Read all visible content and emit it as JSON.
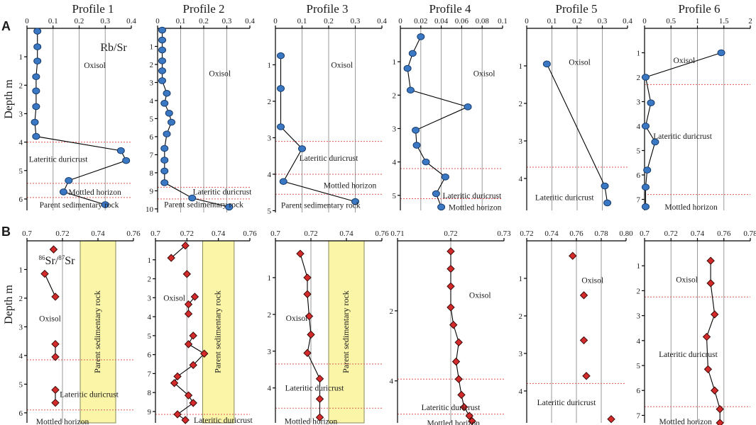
{
  "panel_labels": [
    "A",
    "B"
  ],
  "chart_data": [
    {
      "type": "line",
      "name": "A-Profile 1",
      "title": "Profile 1",
      "ylabel": "Depth m",
      "variable_label": "Rb/Sr",
      "xticks": [
        "0",
        "0.1",
        "0.2",
        "0.3",
        "0.4"
      ],
      "xlim": [
        0,
        0.4
      ],
      "yticks": [
        "1",
        "2",
        "3",
        "4",
        "5",
        "6"
      ],
      "ylim": [
        0,
        6.4
      ],
      "points": [
        {
          "x": 0.04,
          "y": 0.1
        },
        {
          "x": 0.04,
          "y": 0.65
        },
        {
          "x": 0.04,
          "y": 1.15
        },
        {
          "x": 0.035,
          "y": 1.7
        },
        {
          "x": 0.035,
          "y": 2.2
        },
        {
          "x": 0.035,
          "y": 2.75
        },
        {
          "x": 0.03,
          "y": 3.3
        },
        {
          "x": 0.035,
          "y": 3.8
        },
        {
          "x": 0.36,
          "y": 4.3
        },
        {
          "x": 0.38,
          "y": 4.65
        },
        {
          "x": 0.16,
          "y": 5.35
        },
        {
          "x": 0.14,
          "y": 5.75
        },
        {
          "x": 0.3,
          "y": 6.2
        }
      ],
      "boundaries": [
        4.0,
        5.45,
        5.95
      ],
      "labels": [
        {
          "text": "Oxisol",
          "x": 0.26,
          "y": 1.3
        },
        {
          "text": "Lateritic duricrust",
          "x": 0.12,
          "y": 4.6
        },
        {
          "text": "Mottled horizon",
          "x": 0.26,
          "y": 5.75
        },
        {
          "text": "Parent sedimentary rock",
          "x": 0.2,
          "y": 6.2
        }
      ]
    },
    {
      "type": "line",
      "name": "A-Profile 2",
      "title": "Profile 2",
      "ylabel": "",
      "xticks": [
        "0",
        "0.1",
        "0.2",
        "0.3",
        "0.4"
      ],
      "xlim": [
        0,
        0.4
      ],
      "yticks": [
        "1",
        "2",
        "3",
        "4",
        "5",
        "6",
        "7",
        "8",
        "9",
        "10"
      ],
      "ylim": [
        0,
        10.2
      ],
      "points": [
        {
          "x": 0.02,
          "y": 0.1
        },
        {
          "x": 0.02,
          "y": 0.65
        },
        {
          "x": 0.02,
          "y": 1.2
        },
        {
          "x": 0.02,
          "y": 1.8
        },
        {
          "x": 0.02,
          "y": 2.35
        },
        {
          "x": 0.02,
          "y": 2.9
        },
        {
          "x": 0.04,
          "y": 3.6
        },
        {
          "x": 0.03,
          "y": 4.15
        },
        {
          "x": 0.05,
          "y": 4.7
        },
        {
          "x": 0.06,
          "y": 5.2
        },
        {
          "x": 0.04,
          "y": 5.85
        },
        {
          "x": 0.03,
          "y": 6.65
        },
        {
          "x": 0.03,
          "y": 7.3
        },
        {
          "x": 0.03,
          "y": 7.9
        },
        {
          "x": 0.03,
          "y": 8.55
        },
        {
          "x": 0.15,
          "y": 9.4
        },
        {
          "x": 0.31,
          "y": 9.9
        }
      ],
      "boundaries": [
        8.8,
        9.45
      ],
      "labels": [
        {
          "text": "Oxisol",
          "x": 0.27,
          "y": 2.5
        },
        {
          "text": "Lateritic duricrust",
          "x": 0.28,
          "y": 9.05
        },
        {
          "text": "Parent sedimentary rock",
          "x": 0.2,
          "y": 9.75
        }
      ]
    },
    {
      "type": "line",
      "name": "A-Profile 3",
      "title": "Profile 3",
      "ylabel": "",
      "xticks": [
        "0",
        "0.1",
        "0.2",
        "0.3",
        "0.4"
      ],
      "xlim": [
        0,
        0.4
      ],
      "yticks": [
        "1",
        "2",
        "3",
        "4",
        "5"
      ],
      "ylim": [
        0,
        5.05
      ],
      "points": [
        {
          "x": 0.02,
          "y": 0.75
        },
        {
          "x": 0.02,
          "y": 1.65
        },
        {
          "x": 0.02,
          "y": 2.7
        },
        {
          "x": 0.1,
          "y": 3.3
        },
        {
          "x": 0.03,
          "y": 4.2
        },
        {
          "x": 0.3,
          "y": 4.75
        }
      ],
      "boundaries": [
        3.1,
        4.0,
        4.55
      ],
      "labels": [
        {
          "text": "Oxisol",
          "x": 0.25,
          "y": 1.0
        },
        {
          "text": "Lateritic duricrust",
          "x": 0.2,
          "y": 3.55
        },
        {
          "text": "Mottled horizon",
          "x": 0.28,
          "y": 4.3
        },
        {
          "text": "Parent sedimentary rock",
          "x": 0.17,
          "y": 4.85
        }
      ]
    },
    {
      "type": "line",
      "name": "A-Profile 4",
      "title": "Profile 4",
      "ylabel": "",
      "xticks": [
        "0",
        "0.02",
        "0.04",
        "0.06",
        "0.08",
        "0.1"
      ],
      "xlim": [
        0,
        0.1
      ],
      "yticks": [
        "1",
        "2",
        "3",
        "4",
        "5"
      ],
      "ylim": [
        0,
        5.45
      ],
      "points": [
        {
          "x": 0.02,
          "y": 0.25
        },
        {
          "x": 0.012,
          "y": 0.75
        },
        {
          "x": 0.007,
          "y": 1.2
        },
        {
          "x": 0.01,
          "y": 1.85
        },
        {
          "x": 0.066,
          "y": 2.35
        },
        {
          "x": 0.015,
          "y": 3.05
        },
        {
          "x": 0.016,
          "y": 3.5
        },
        {
          "x": 0.025,
          "y": 4.0
        },
        {
          "x": 0.044,
          "y": 4.45
        },
        {
          "x": 0.035,
          "y": 4.95
        },
        {
          "x": 0.04,
          "y": 5.35
        }
      ],
      "boundaries": [
        4.2,
        5.1
      ],
      "labels": [
        {
          "text": "Oxisol",
          "x": 0.082,
          "y": 1.35
        },
        {
          "text": "Lateritic duricrust",
          "x": 0.07,
          "y": 5.0
        },
        {
          "text": "Mottled horizon",
          "x": 0.073,
          "y": 5.35
        }
      ]
    },
    {
      "type": "line",
      "name": "A-Profile 5",
      "title": "Profile 5",
      "ylabel": "",
      "xticks": [
        "0",
        "0.1",
        "0.2",
        "0.3",
        "0.4"
      ],
      "xlim": [
        0,
        0.4
      ],
      "yticks": [
        "1",
        "2",
        "3",
        "4"
      ],
      "ylim": [
        0,
        4.85
      ],
      "points": [
        {
          "x": 0.08,
          "y": 0.95,
          "solo": true
        },
        {
          "x": 0.31,
          "y": 4.2
        },
        {
          "x": 0.32,
          "y": 4.65
        }
      ],
      "boundaries": [
        3.7
      ],
      "labels": [
        {
          "text": "Oxisol",
          "x": 0.21,
          "y": 0.9
        },
        {
          "text": "Lateritic duricrust",
          "x": 0.15,
          "y": 4.5
        }
      ]
    },
    {
      "type": "line",
      "name": "A-Profile 6",
      "title": "Profile 6",
      "ylabel": "",
      "xticks": [
        "0",
        "0.5",
        "1",
        "1.5",
        "2"
      ],
      "xlim": [
        0,
        2
      ],
      "yticks": [
        "1",
        "2",
        "3",
        "4",
        "5",
        "6",
        "7"
      ],
      "ylim": [
        0,
        7.45
      ],
      "points": [
        {
          "x": 1.45,
          "y": 1.0
        },
        {
          "x": 0.02,
          "y": 2.0
        },
        {
          "x": 0.12,
          "y": 3.05
        },
        {
          "x": 0.02,
          "y": 4.0
        },
        {
          "x": 0.2,
          "y": 4.65
        },
        {
          "x": 0.05,
          "y": 5.8
        },
        {
          "x": 0.02,
          "y": 6.5
        },
        {
          "x": 0.02,
          "y": 7.3
        }
      ],
      "boundaries": [
        2.3,
        6.8
      ],
      "labels": [
        {
          "text": "Oxisol",
          "x": 0.75,
          "y": 1.3
        },
        {
          "text": "Lateritic duricrust",
          "x": 0.72,
          "y": 4.4
        },
        {
          "text": "Mottled horizon",
          "x": 0.88,
          "y": 7.3
        }
      ]
    },
    {
      "type": "line",
      "name": "B-Profile 1",
      "title": "",
      "ylabel": "Depth m",
      "variable_label": "86Sr/87Sr",
      "xticks": [
        "0.7",
        "0.72",
        "0.74",
        "0.76"
      ],
      "xlim": [
        0.7,
        0.76
      ],
      "yticks": [
        "1",
        "2",
        "3",
        "4",
        "5",
        "6"
      ],
      "ylim": [
        0,
        6.35
      ],
      "points": [
        {
          "x": 0.715,
          "y": 0.3
        },
        {
          "x": 0.71,
          "y": 1.15,
          "break_before": true
        },
        {
          "x": 0.716,
          "y": 1.95
        },
        {
          "x": 0.716,
          "y": 3.6,
          "break_before": true
        },
        {
          "x": 0.716,
          "y": 4.05
        },
        {
          "x": 0.716,
          "y": 5.2,
          "break_before": true
        },
        {
          "x": 0.716,
          "y": 5.65
        }
      ],
      "band": [
        0.73,
        0.75
      ],
      "band_label": "Parent sedimentary rock",
      "boundaries": [
        4.15,
        5.9
      ],
      "labels": [
        {
          "text": "Oxisol",
          "x": 0.713,
          "y": 2.7
        },
        {
          "text": "Lateritic duricrust",
          "x": 0.735,
          "y": 5.35
        },
        {
          "text": "Mottled horizon",
          "x": 0.72,
          "y": 6.3
        }
      ]
    },
    {
      "type": "line",
      "name": "B-Profile 2",
      "title": "",
      "ylabel": "",
      "xticks": [
        "0.7",
        "0.72",
        "0.74",
        "0.76"
      ],
      "xlim": [
        0.7,
        0.76
      ],
      "yticks": [
        "1",
        "2",
        "3",
        "4",
        "5",
        "6",
        "7",
        "8",
        "9"
      ],
      "ylim": [
        0,
        9.6
      ],
      "points": [
        {
          "x": 0.719,
          "y": 0.25
        },
        {
          "x": 0.71,
          "y": 0.9
        },
        {
          "x": 0.72,
          "y": 1.75,
          "break_before": true
        },
        {
          "x": 0.725,
          "y": 2.95,
          "break_before": true
        },
        {
          "x": 0.721,
          "y": 3.35
        },
        {
          "x": 0.721,
          "y": 3.85
        },
        {
          "x": 0.724,
          "y": 5.0,
          "break_before": true
        },
        {
          "x": 0.721,
          "y": 5.45
        },
        {
          "x": 0.731,
          "y": 5.95
        },
        {
          "x": 0.724,
          "y": 6.55
        },
        {
          "x": 0.714,
          "y": 7.15
        },
        {
          "x": 0.712,
          "y": 7.5
        },
        {
          "x": 0.721,
          "y": 8.15
        },
        {
          "x": 0.724,
          "y": 8.55
        },
        {
          "x": 0.714,
          "y": 9.15
        },
        {
          "x": 0.719,
          "y": 9.45
        }
      ],
      "band": [
        0.73,
        0.75
      ],
      "band_label": "Parent sedimentary rock",
      "boundaries": [
        9.15
      ],
      "labels": [
        {
          "text": "Oxisol",
          "x": 0.712,
          "y": 3.0
        },
        {
          "text": "Lateritic duricrust",
          "x": 0.743,
          "y": 9.45
        }
      ]
    },
    {
      "type": "line",
      "name": "B-Profile 3",
      "title": "",
      "ylabel": "",
      "xticks": [
        "0.7",
        "0.72",
        "0.74",
        "0.76"
      ],
      "xlim": [
        0.7,
        0.76
      ],
      "yticks": [
        "1",
        "2",
        "3",
        "4"
      ],
      "ylim": [
        0,
        4.95
      ],
      "points": [
        {
          "x": 0.714,
          "y": 0.35
        },
        {
          "x": 0.718,
          "y": 1.0
        },
        {
          "x": 0.718,
          "y": 1.45
        },
        {
          "x": 0.719,
          "y": 2.05
        },
        {
          "x": 0.72,
          "y": 2.55
        },
        {
          "x": 0.718,
          "y": 3.05
        },
        {
          "x": 0.725,
          "y": 3.75
        },
        {
          "x": 0.725,
          "y": 4.3
        },
        {
          "x": 0.725,
          "y": 4.8
        }
      ],
      "band": [
        0.73,
        0.75
      ],
      "band_label": "Parent sedimentary rock",
      "boundaries": [
        3.35,
        4.55
      ],
      "labels": [
        {
          "text": "Oxisol",
          "x": 0.712,
          "y": 2.1
        },
        {
          "text": "Lateritic duricrust",
          "x": 0.722,
          "y": 4.0
        },
        {
          "text": "Mottled horizon",
          "x": 0.72,
          "y": 4.9
        }
      ]
    },
    {
      "type": "line",
      "name": "B-Profile 4",
      "title": "",
      "ylabel": "",
      "xticks": [
        "0.71",
        "0.72",
        "0.73"
      ],
      "xlim": [
        0.71,
        0.73
      ],
      "yticks": [
        "2",
        "4"
      ],
      "ylim": [
        0,
        5.2
      ],
      "points": [
        {
          "x": 0.72,
          "y": 0.3
        },
        {
          "x": 0.72,
          "y": 0.8
        },
        {
          "x": 0.72,
          "y": 1.3
        },
        {
          "x": 0.72,
          "y": 1.9
        },
        {
          "x": 0.7205,
          "y": 2.4
        },
        {
          "x": 0.7215,
          "y": 2.9
        },
        {
          "x": 0.721,
          "y": 3.45
        },
        {
          "x": 0.7215,
          "y": 3.95
        },
        {
          "x": 0.722,
          "y": 4.4
        },
        {
          "x": 0.7225,
          "y": 4.75
        },
        {
          "x": 0.7235,
          "y": 5.0
        },
        {
          "x": 0.724,
          "y": 5.15
        }
      ],
      "boundaries": [
        3.95,
        4.95
      ],
      "labels": [
        {
          "text": "Oxisol",
          "x": 0.7255,
          "y": 1.55
        },
        {
          "text": "Lateritic duricrust",
          "x": 0.72,
          "y": 4.75
        },
        {
          "text": "Mottled horizon",
          "x": 0.7205,
          "y": 5.2
        }
      ]
    },
    {
      "type": "line",
      "name": "B-Profile 5",
      "title": "",
      "ylabel": "",
      "xticks": [
        "0.72",
        "0.74",
        "0.76",
        "0.78",
        "0.80"
      ],
      "xlim": [
        0.72,
        0.8
      ],
      "yticks": [
        "1",
        "2",
        "3",
        "4"
      ],
      "ylim": [
        0,
        4.85
      ],
      "points": [
        {
          "x": 0.757,
          "y": 0.4
        },
        {
          "x": 0.766,
          "y": 1.45,
          "break_before": true
        },
        {
          "x": 0.766,
          "y": 2.65,
          "break_before": true
        },
        {
          "x": 0.768,
          "y": 3.6,
          "break_before": true
        },
        {
          "x": 0.788,
          "y": 4.75,
          "break_before": true
        }
      ],
      "boundaries": [
        3.8
      ],
      "labels": [
        {
          "text": "Oxisol",
          "x": 0.773,
          "y": 1.05
        },
        {
          "text": "Lateritic duricrust",
          "x": 0.752,
          "y": 4.3
        }
      ]
    },
    {
      "type": "line",
      "name": "B-Profile 6",
      "title": "",
      "ylabel": "",
      "xticks": [
        "0.7",
        "0.72",
        "0.74",
        "0.76",
        "0.78"
      ],
      "xlim": [
        0.7,
        0.78
      ],
      "yticks": [
        "1",
        "2",
        "3",
        "4",
        "5",
        "6",
        "7"
      ],
      "ylim": [
        0,
        7.3
      ],
      "points": [
        {
          "x": 0.75,
          "y": 0.8
        },
        {
          "x": 0.75,
          "y": 1.7
        },
        {
          "x": 0.753,
          "y": 2.95
        },
        {
          "x": 0.747,
          "y": 3.85
        },
        {
          "x": 0.748,
          "y": 5.15
        },
        {
          "x": 0.753,
          "y": 6.0
        },
        {
          "x": 0.757,
          "y": 6.75
        },
        {
          "x": 0.757,
          "y": 7.3
        }
      ],
      "boundaries": [
        2.25,
        6.65
      ],
      "labels": [
        {
          "text": "Oxisol",
          "x": 0.732,
          "y": 1.55
        },
        {
          "text": "Lateritic duricrust",
          "x": 0.733,
          "y": 4.55
        },
        {
          "text": "Mottled horizon",
          "x": 0.731,
          "y": 7.25
        }
      ]
    }
  ]
}
